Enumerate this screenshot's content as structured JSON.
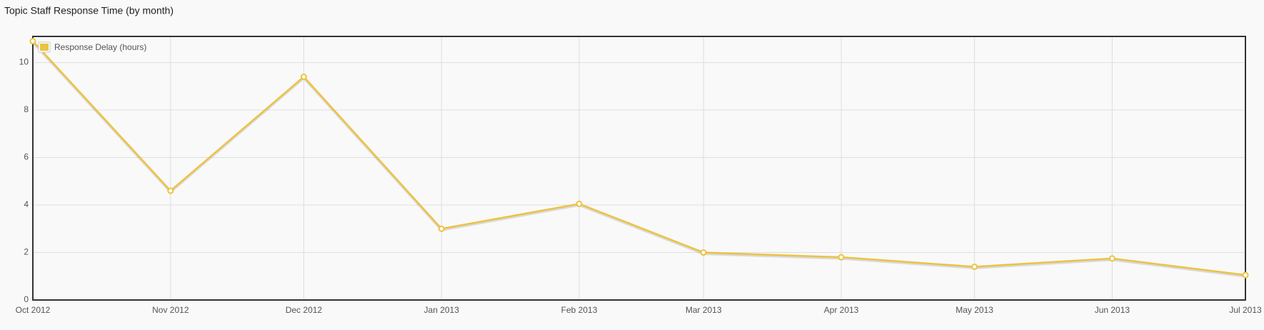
{
  "chart_data": {
    "type": "line",
    "title": "Topic Staff Response Time (by month)",
    "x": [
      "Oct 2012",
      "Nov 2012",
      "Dec 2012",
      "Jan 2013",
      "Feb 2013",
      "Mar 2013",
      "Apr 2013",
      "May 2013",
      "Jun 2013",
      "Jul 2013"
    ],
    "series": [
      {
        "name": "Response Delay (hours)",
        "color": "#edc240",
        "values": [
          10.9,
          4.6,
          9.4,
          3.0,
          4.05,
          2.0,
          1.8,
          1.4,
          1.75,
          1.05
        ]
      }
    ],
    "ylim": [
      0,
      11.1
    ],
    "yticks": [
      0,
      2,
      4,
      6,
      8,
      10
    ],
    "grid": true,
    "legend": "top-left"
  }
}
